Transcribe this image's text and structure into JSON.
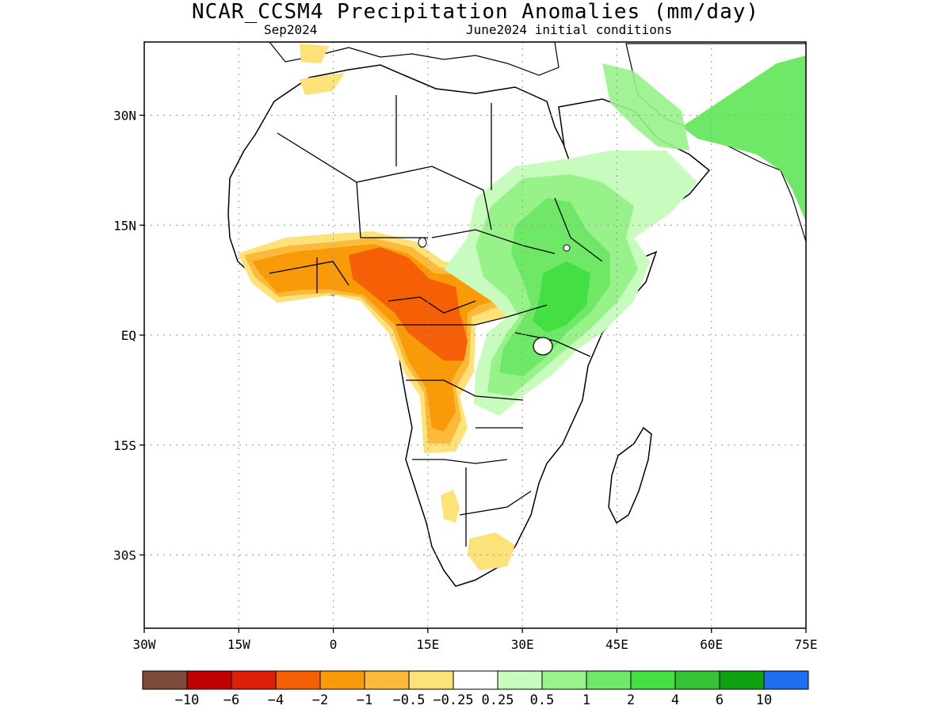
{
  "header": {
    "title": "NCAR_CCSM4 Precipitation Anomalies (mm/day)",
    "target_month": "Sep2024",
    "init": "June2024 initial conditions"
  },
  "map": {
    "lon_range": [
      -30,
      75
    ],
    "lat_range": [
      -40,
      40
    ],
    "x_ticks": [
      {
        "lon": -30,
        "label": "30W"
      },
      {
        "lon": -15,
        "label": "15W"
      },
      {
        "lon": 0,
        "label": "0"
      },
      {
        "lon": 15,
        "label": "15E"
      },
      {
        "lon": 30,
        "label": "30E"
      },
      {
        "lon": 45,
        "label": "45E"
      },
      {
        "lon": 60,
        "label": "60E"
      },
      {
        "lon": 75,
        "label": "75E"
      }
    ],
    "y_ticks": [
      {
        "lat": 30,
        "label": "30N"
      },
      {
        "lat": 15,
        "label": "15N"
      },
      {
        "lat": 0,
        "label": "EQ"
      },
      {
        "lat": -15,
        "label": "15S"
      },
      {
        "lat": -30,
        "label": "30S"
      }
    ],
    "grid": "dotted",
    "colors": {
      "very_dry": "#7b4c3c",
      "dry_10": "#c00000",
      "dry_6": "#e01f0a",
      "dry_4": "#f55f05",
      "dry_2": "#f99a08",
      "dry_1": "#fbba3b",
      "dry_05": "#fde27a",
      "neutral": "#ffffff",
      "wet_025": "#c8fcbe",
      "wet_05": "#97f28a",
      "wet_1": "#6ee866",
      "wet_2": "#44e043",
      "wet_4": "#35c335",
      "wet_6": "#0fa00f",
      "wet_10": "#1f6ef0"
    }
  },
  "colorbar": {
    "colors": [
      "#7b4c3c",
      "#c00000",
      "#e01f0a",
      "#f55f05",
      "#f99a08",
      "#fbba3b",
      "#fde27a",
      "#ffffff",
      "#c8fcbe",
      "#97f28a",
      "#6ee866",
      "#44e043",
      "#35c335",
      "#0fa00f",
      "#1f6ef0"
    ],
    "labels": [
      "−10",
      "−6",
      "−4",
      "−2",
      "−1",
      "−0.5",
      "−0.25",
      "0.25",
      "0.5",
      "1",
      "2",
      "4",
      "6",
      "10"
    ]
  }
}
